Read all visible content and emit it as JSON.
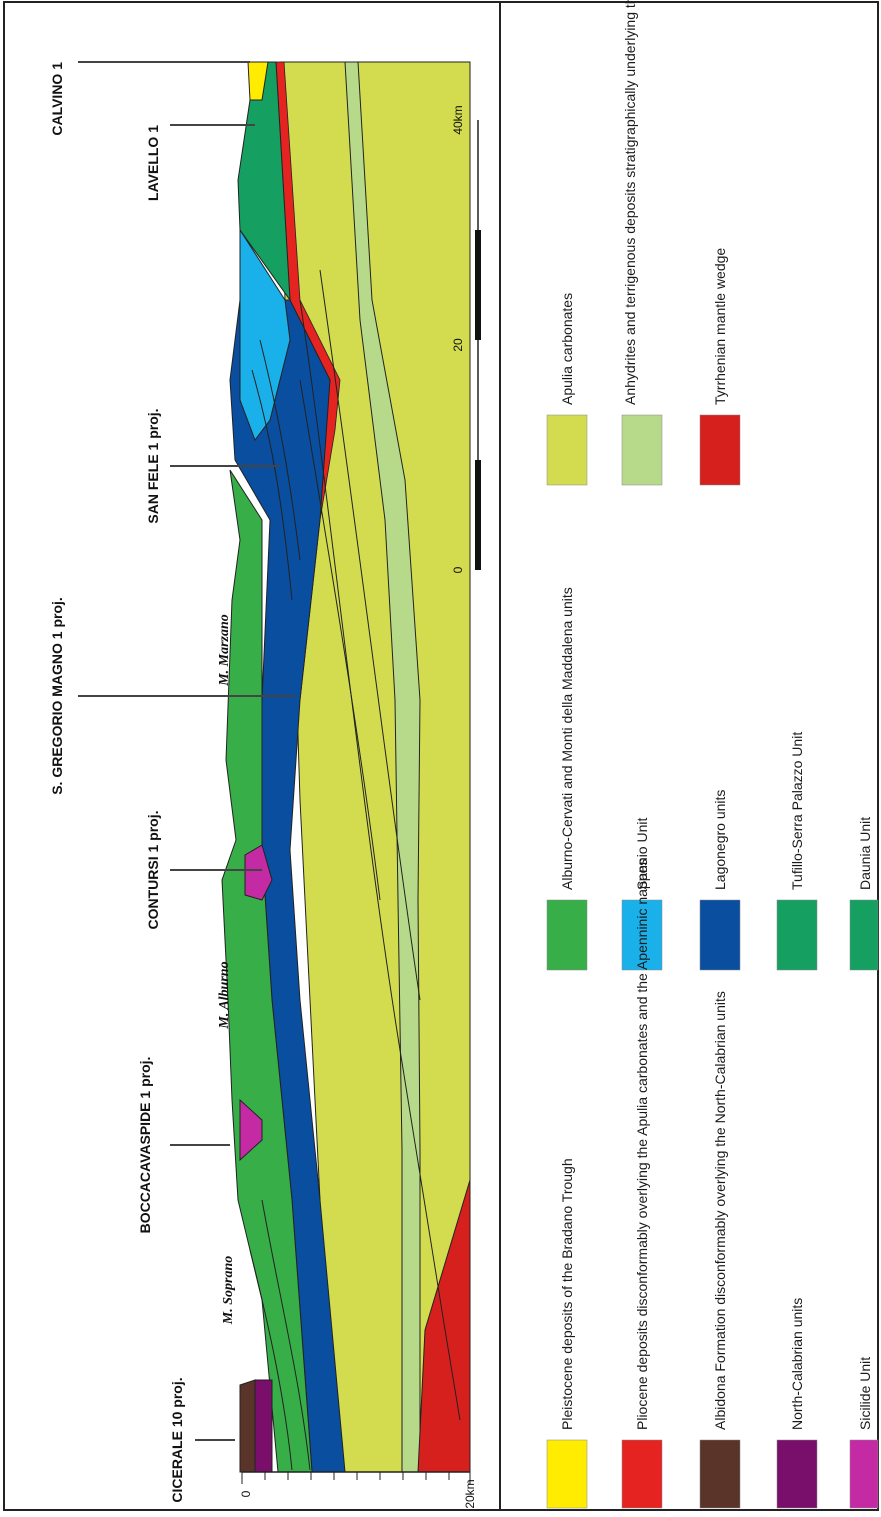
{
  "wells": [
    {
      "label": "CALVINO 1"
    },
    {
      "label": "LAVELLO 1"
    },
    {
      "label": "SAN FELE 1 proj."
    },
    {
      "label": "S. GREGORIO MAGNO 1 proj."
    },
    {
      "label": "CONTURSI 1 proj."
    },
    {
      "label": "BOCCACAVASPIDE 1 proj."
    },
    {
      "label": "CICERALE 10 proj."
    }
  ],
  "mountains": [
    {
      "label": "M. Marzano"
    },
    {
      "label": "M. Alburno"
    },
    {
      "label": "M. Soprano"
    }
  ],
  "depth_axis": {
    "top": "0",
    "bottom": "20km"
  },
  "horizontal_scale": {
    "ticks": [
      "0",
      "20",
      "40km"
    ]
  },
  "legend": [
    {
      "label": "Apulia carbonates",
      "color": "#d2dc4e"
    },
    {
      "label": "Anhydrites and terrigenous deposits stratigraphically underlying the Apulia carbonates",
      "color": "#b6d98a"
    },
    {
      "label": "Tyrrhenian mantle wedge",
      "color": "#d6201d"
    },
    {
      "label": "Alburno-Cervati and Monti della Maddalena units",
      "color": "#37ae48"
    },
    {
      "label": "Sannio Unit",
      "color": "#1ab0ea"
    },
    {
      "label": "Lagonegro units",
      "color": "#0a4ea0"
    },
    {
      "label": "Tufillo-Serra Palazzo Unit",
      "color": "#15a062"
    },
    {
      "label": "Daunia Unit",
      "color": "#15a062"
    },
    {
      "label": "Pleistocene deposits of the Bradano Trough",
      "color": "#ffec00"
    },
    {
      "label": "Pliocene deposits disconformably overlying the Apulia carbonates and the Apenninic nappes",
      "color": "#e52421"
    },
    {
      "label": "Albidona Formation disconformably overlying the North-Calabrian units",
      "color": "#5a3329"
    },
    {
      "label": "North-Calabrian units",
      "color": "#7a0f6b"
    },
    {
      "label": "Sicilide Unit",
      "color": "#c42aa4"
    }
  ]
}
